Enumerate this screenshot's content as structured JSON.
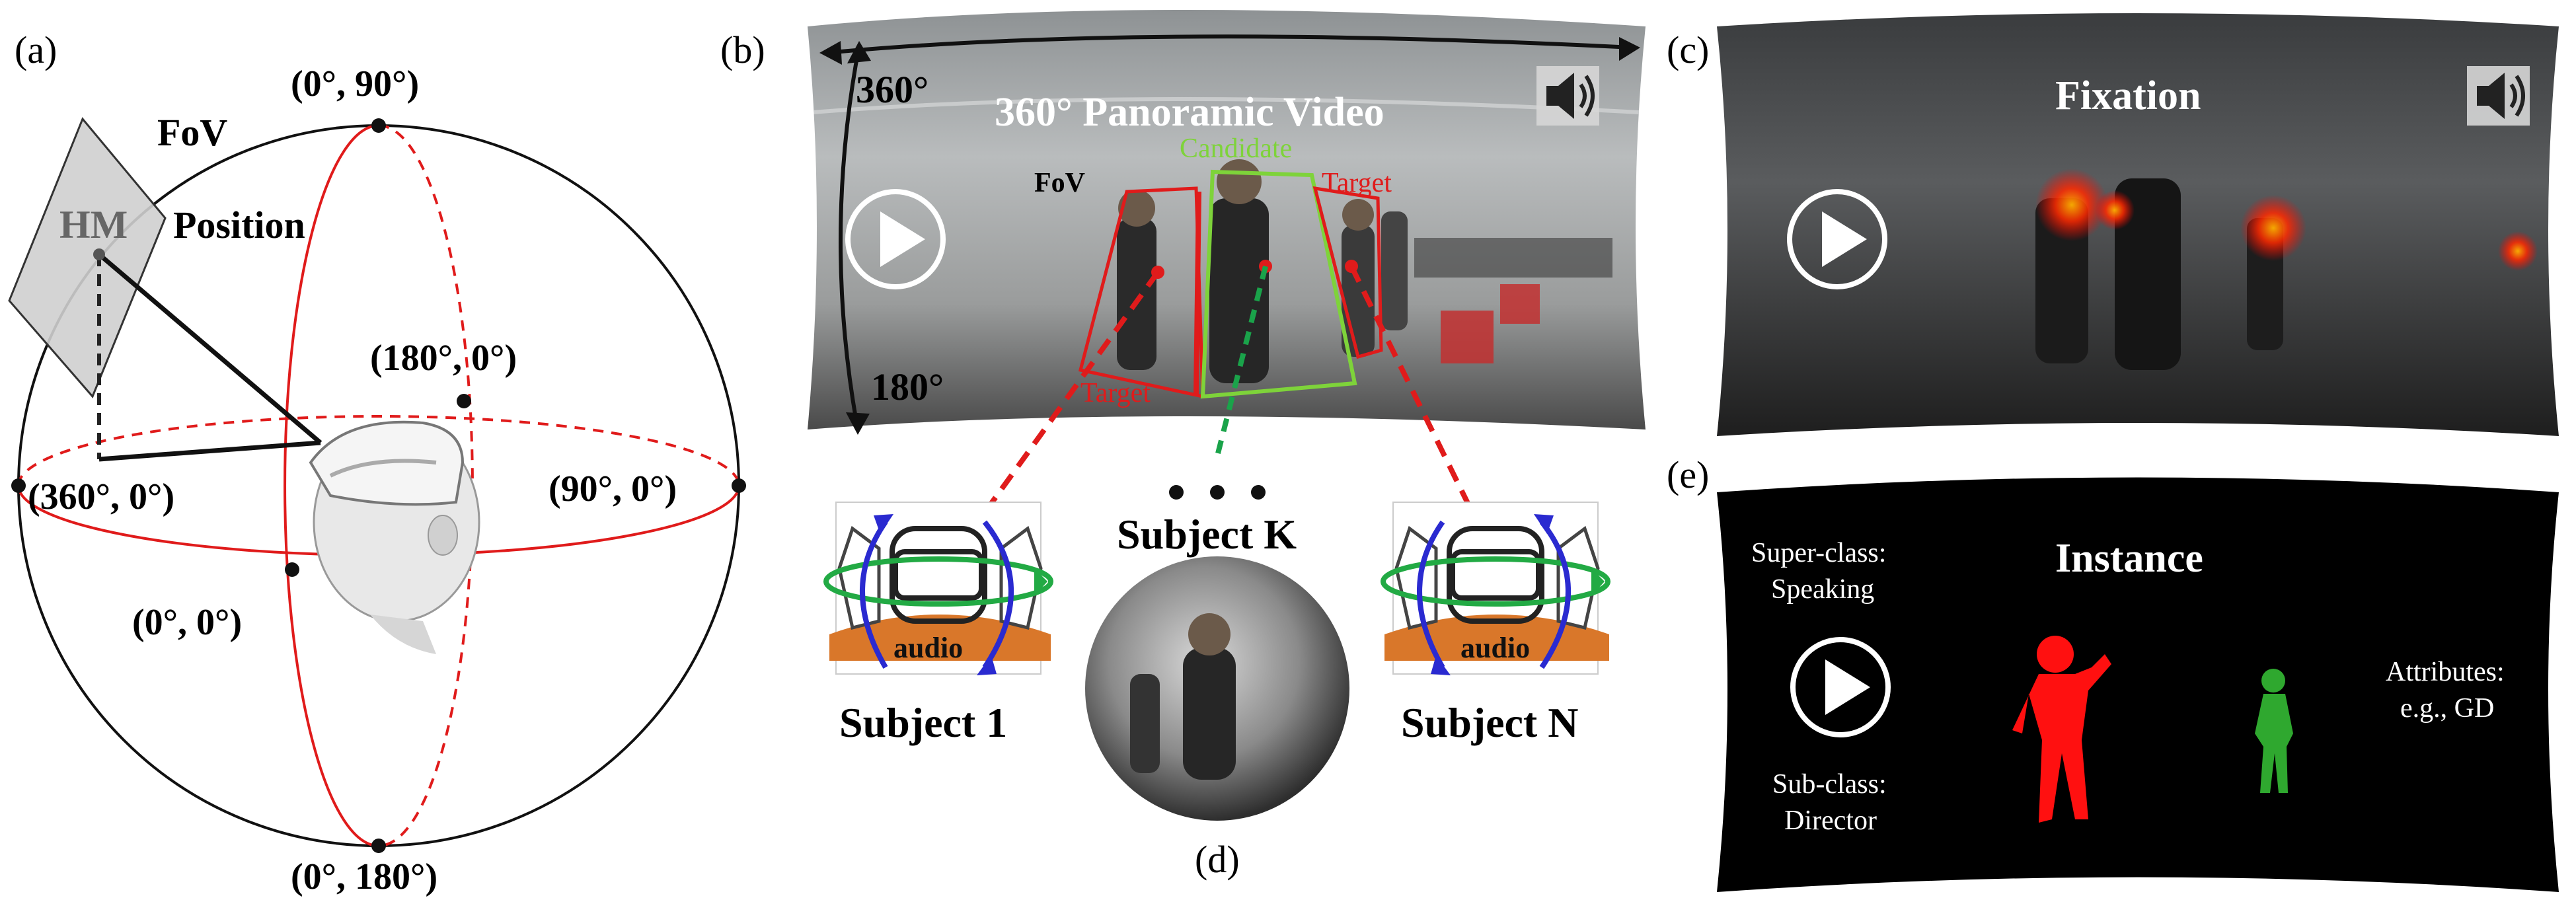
{
  "panels": {
    "a": {
      "label": "(a)",
      "fov": "FoV",
      "hm": "HM",
      "position": "Position",
      "coords": {
        "top": "(0°, 90°)",
        "back": "(180°, 0°)",
        "left": "(360°, 0°)",
        "right": "(90°, 0°)",
        "front": "(0°, 0°)",
        "bottom": "(0°, 180°)"
      }
    },
    "b": {
      "label": "(b)",
      "title": "360° Panoramic Video",
      "h_extent": "360°",
      "v_extent": "180°",
      "fov": "FoV",
      "candidate": "Candidate",
      "target_right": "Target",
      "target_left": "Target",
      "subject_1": "Subject 1",
      "subject_k": "Subject K",
      "subject_n": "Subject N",
      "audio": "audio"
    },
    "c": {
      "label": "(c)",
      "title": "Fixation"
    },
    "d": {
      "label": "(d)"
    },
    "e": {
      "label": "(e)",
      "title": "Instance",
      "super_class_line1": "Super-class:",
      "super_class_line2": "Speaking",
      "sub_class_line1": "Sub-class:",
      "sub_class_line2": "Director",
      "attributes_line1": "Attributes:",
      "attributes_line2": "e.g., GD"
    }
  },
  "colors": {
    "red": "#e01b1b",
    "candidate_green": "#7ed33a",
    "dashed_green": "#1aa34a",
    "arrow_blue": "#2a2ad0",
    "arrow_green": "#22aa44",
    "audio_orange": "#d9772a",
    "instance_red": "#ff1010",
    "instance_green": "#2fa82f"
  },
  "icons": [
    "play-icon",
    "speaker-icon",
    "vr-headset-icon"
  ]
}
